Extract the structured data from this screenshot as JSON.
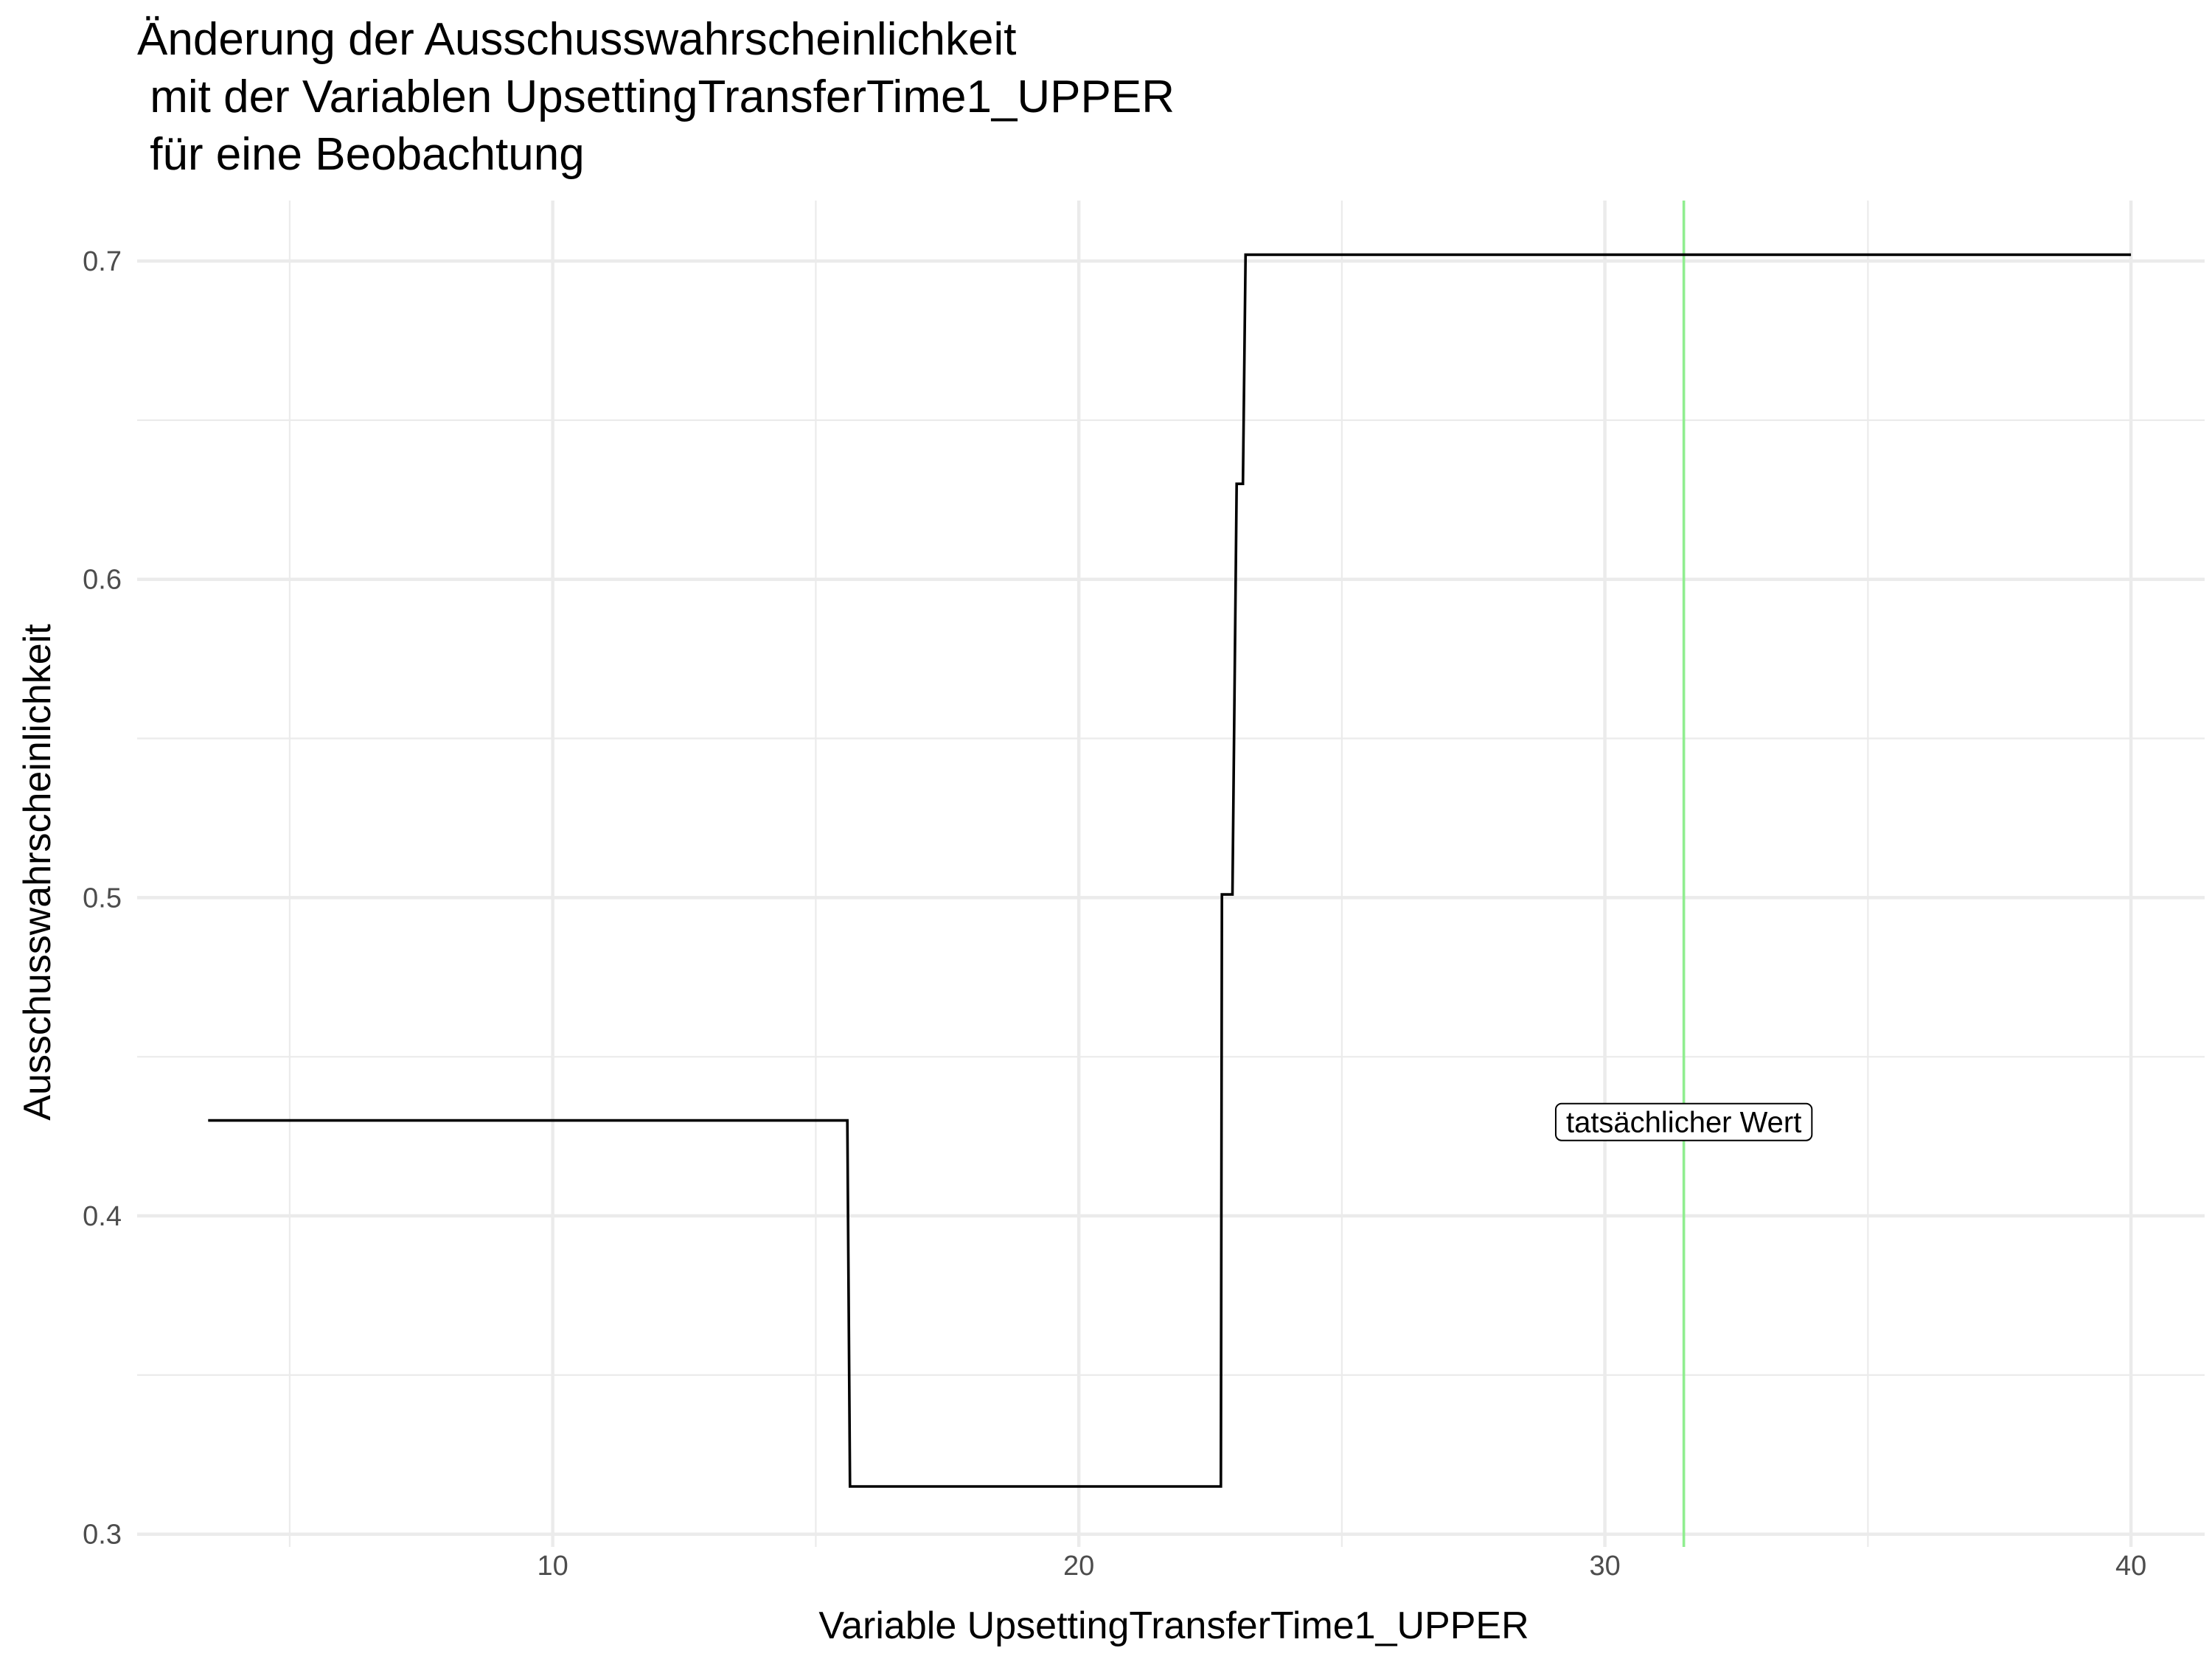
{
  "chart_data": {
    "type": "line",
    "title_lines": [
      "Änderung der Ausschusswahrscheinlichkeit",
      " mit der Variablen UpsettingTransferTime1_UPPER",
      " für eine Beobachtung"
    ],
    "xlabel": "Variable UpsettingTransferTime1_UPPER",
    "ylabel": "Ausschusswahrscheinlichkeit",
    "xlim": [
      2.1,
      41.4
    ],
    "ylim": [
      0.296,
      0.719
    ],
    "x_ticks": [
      10,
      20,
      30,
      40
    ],
    "x_tick_labels": [
      "10",
      "20",
      "30",
      "40"
    ],
    "x_minor_ticks": [
      5,
      15,
      25,
      35
    ],
    "y_ticks": [
      0.3,
      0.4,
      0.5,
      0.6,
      0.7
    ],
    "y_tick_labels": [
      "0.3",
      "0.4",
      "0.5",
      "0.6",
      "0.7"
    ],
    "y_minor_ticks": [
      0.35,
      0.45,
      0.55,
      0.65
    ],
    "grid": true,
    "series": [
      {
        "points": [
          {
            "x": 3.45,
            "y": 0.43
          },
          {
            "x": 15.6,
            "y": 0.43
          },
          {
            "x": 15.65,
            "y": 0.315
          },
          {
            "x": 22.7,
            "y": 0.315
          },
          {
            "x": 22.72,
            "y": 0.501
          },
          {
            "x": 22.92,
            "y": 0.501
          },
          {
            "x": 23.0,
            "y": 0.63
          },
          {
            "x": 23.12,
            "y": 0.63
          },
          {
            "x": 23.17,
            "y": 0.702
          },
          {
            "x": 40.0,
            "y": 0.702
          }
        ]
      }
    ],
    "reference_line": {
      "x": 31.5,
      "color": "#90ee90"
    },
    "annotation": {
      "text": "tatsächlicher Wert",
      "x": 31.5,
      "y": 0.4295
    }
  }
}
